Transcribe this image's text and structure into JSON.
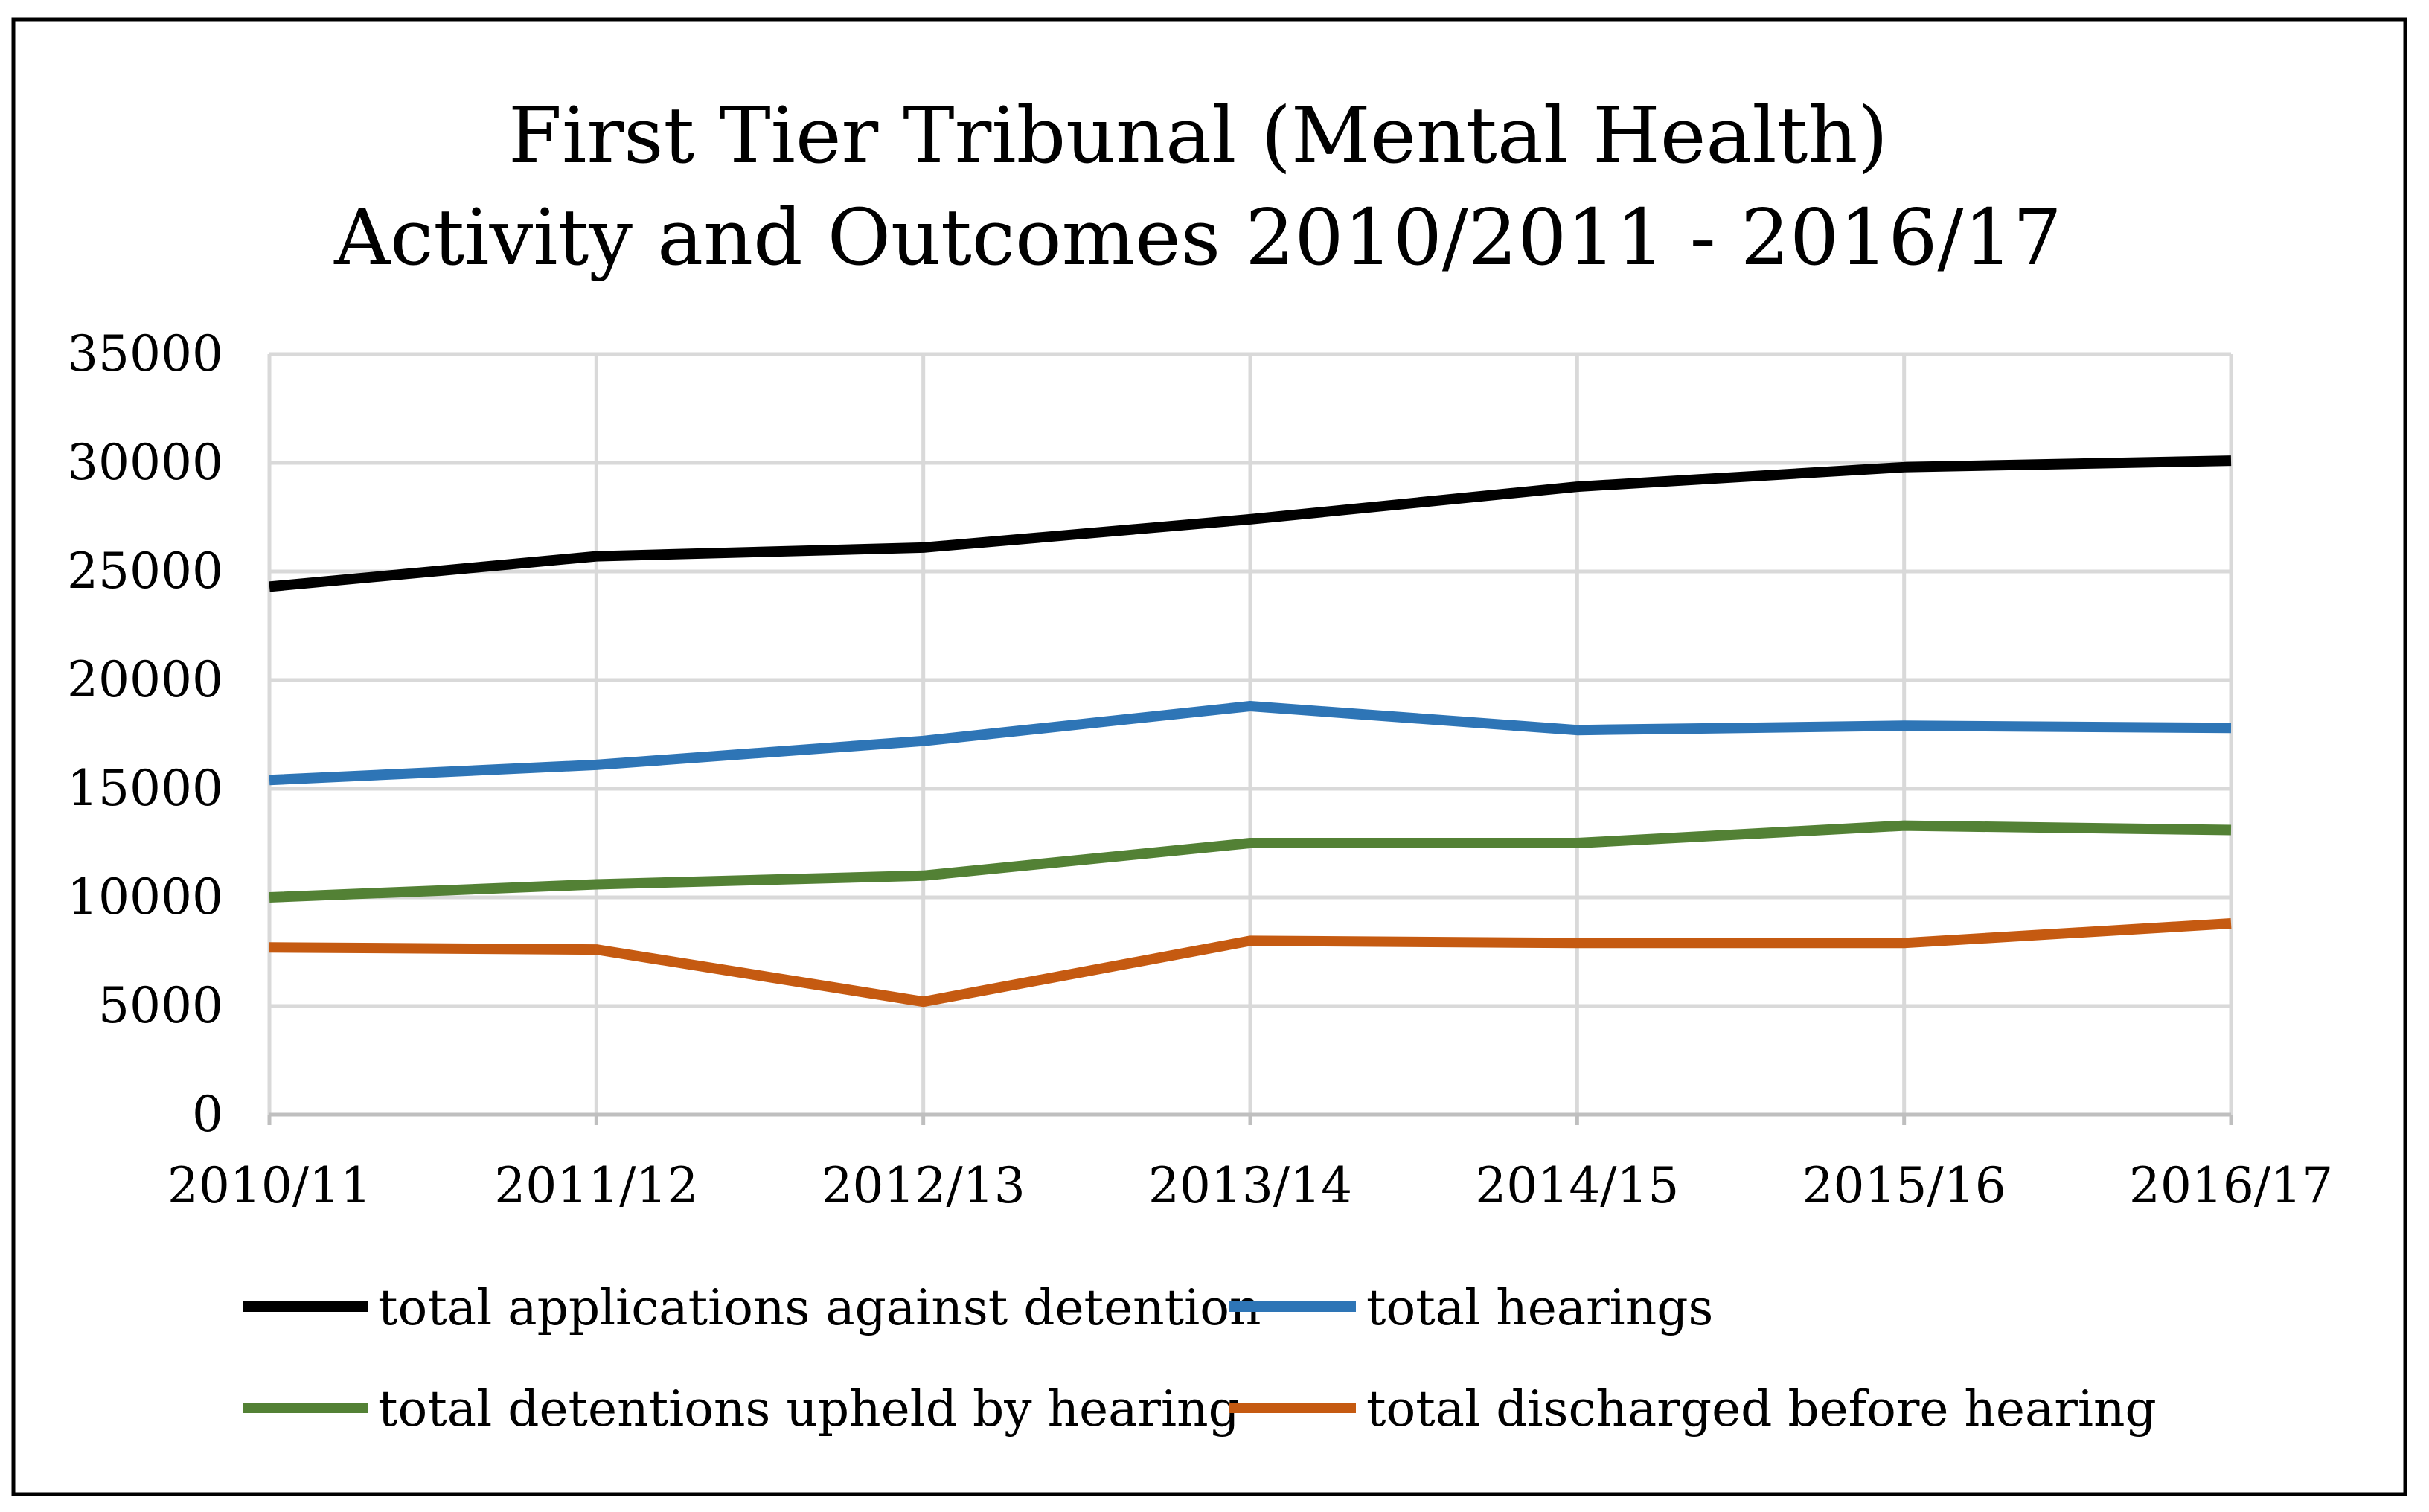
{
  "chart_data": {
    "type": "line",
    "title": [
      "First Tier Tribunal (Mental Health)",
      "Activity and Outcomes 2010/2011 - 2016/17"
    ],
    "xlabel": "",
    "ylabel": "",
    "categories": [
      "2010/11",
      "2011/12",
      "2012/13",
      "2013/14",
      "2014/15",
      "2015/16",
      "2016/17"
    ],
    "ylim": [
      0,
      35000
    ],
    "yticks": [
      0,
      5000,
      10000,
      15000,
      20000,
      25000,
      30000,
      35000
    ],
    "grid": true,
    "legend_position": "bottom",
    "series": [
      {
        "name": "total applications against detention",
        "color": "#000000",
        "values": [
          24300,
          25700,
          26100,
          27400,
          28900,
          29800,
          30100
        ]
      },
      {
        "name": "total hearings",
        "color": "#2e75b6",
        "values": [
          15400,
          16100,
          17200,
          18800,
          17700,
          17900,
          17800
        ]
      },
      {
        "name": "total detentions upheld by hearing",
        "color": "#538135",
        "values": [
          10000,
          10600,
          11000,
          12500,
          12500,
          13300,
          13100
        ]
      },
      {
        "name": "total discharged before hearing",
        "color": "#c55a11",
        "values": [
          7700,
          7600,
          5200,
          8000,
          7900,
          7900,
          8800
        ]
      }
    ]
  }
}
